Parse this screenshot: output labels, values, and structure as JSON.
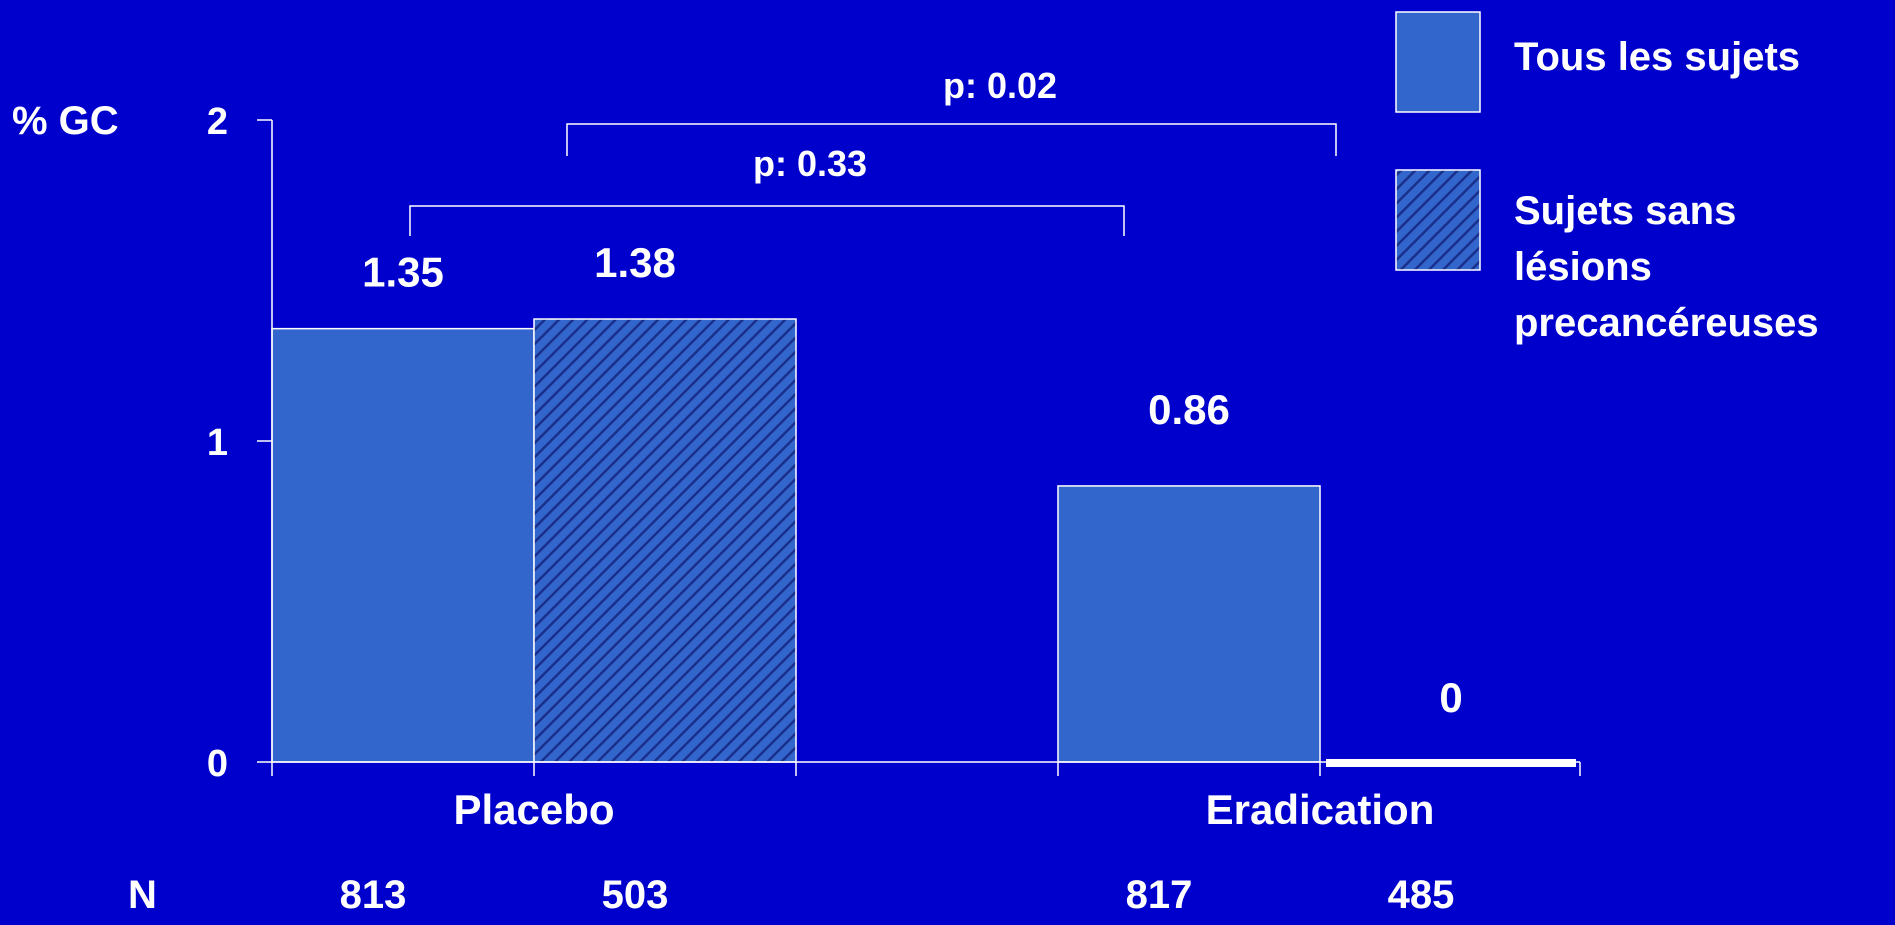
{
  "chart_data": {
    "type": "bar",
    "ylabel": "% GC",
    "ylim": [
      0,
      2
    ],
    "yticks": [
      "0",
      "1",
      "2"
    ],
    "categories": [
      "Placebo",
      "Eradication"
    ],
    "series": [
      {
        "name": "Tous les sujets",
        "values": [
          1.35,
          0.86
        ],
        "value_labels": [
          "1.35",
          "0.86"
        ],
        "n": [
          "813",
          "817"
        ],
        "fill": "#3366cc",
        "pattern": "solid"
      },
      {
        "name_lines": [
          "Sujets  sans",
          "lésions",
          "precancéreuses"
        ],
        "values": [
          1.38,
          0
        ],
        "value_labels": [
          "1.38",
          "0"
        ],
        "n": [
          "503",
          "485"
        ],
        "fill": "#3366cc",
        "pattern": "hatched"
      }
    ],
    "n_label": "N",
    "comparisons": [
      {
        "label": "p: 0.33",
        "from_category": 0,
        "to_category": 1,
        "series": 0
      },
      {
        "label": "p: 0.02",
        "from_category": 0,
        "to_category": 1,
        "series": 1
      }
    ],
    "legend_position": "top-right",
    "grid": false,
    "colors": {
      "background": "#0000cc",
      "bar": "#3366cc",
      "hatch": "#1a2f8c",
      "text": "#ffffff",
      "axis": "#ffffff"
    }
  }
}
